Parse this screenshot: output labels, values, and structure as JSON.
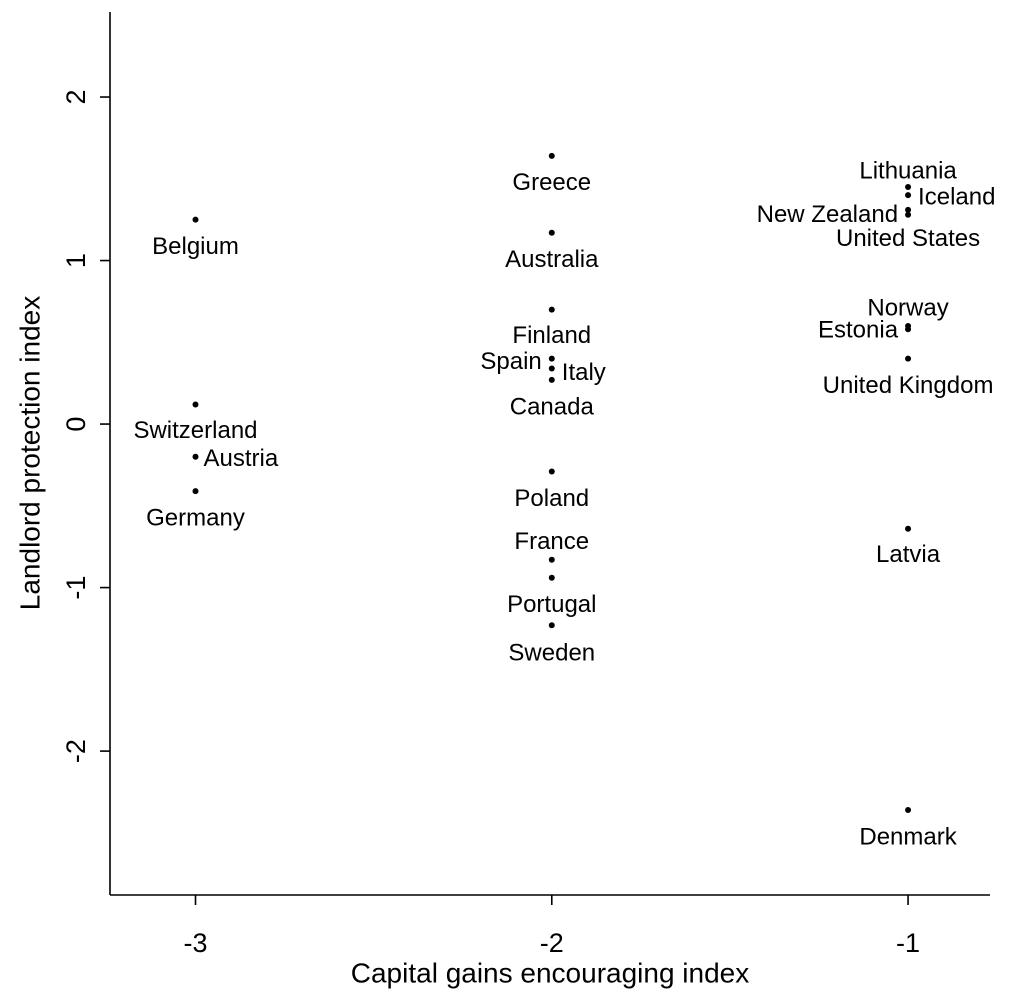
{
  "chart_data": {
    "type": "scatter",
    "xlabel": "Capital gains encouraging index",
    "ylabel": "Landlord protection index",
    "labels": [
      "Belgium",
      "Switzerland",
      "Austria",
      "Germany",
      "Greece",
      "Australia",
      "Finland",
      "Spain",
      "Italy",
      "Canada",
      "Poland",
      "France",
      "Portugal",
      "Sweden",
      "Lithuania",
      "Iceland",
      "New Zealand",
      "United States",
      "Norway",
      "Estonia",
      "United Kingdom",
      "Latvia",
      "Denmark"
    ],
    "x": [
      -3,
      -3,
      -3,
      -3,
      -2,
      -2,
      -2,
      -2,
      -2,
      -2,
      -2,
      -2,
      -2,
      -2,
      -1,
      -1,
      -1,
      -1,
      -1,
      -1,
      -1,
      -1,
      -1
    ],
    "y": [
      1.25,
      0.12,
      -0.2,
      -0.41,
      1.64,
      1.17,
      0.7,
      0.4,
      0.34,
      0.27,
      -0.29,
      -0.83,
      -0.94,
      -1.23,
      1.45,
      1.4,
      1.31,
      1.28,
      0.6,
      0.58,
      0.4,
      -0.64,
      -2.36
    ],
    "color": "#000000",
    "xlim": [
      -3.24,
      -0.77
    ],
    "xticks": [
      -3,
      -2,
      -1
    ],
    "ylim": [
      -2.88,
      2.52
    ],
    "yticks": [
      -2,
      -1,
      0,
      1,
      2
    ]
  }
}
